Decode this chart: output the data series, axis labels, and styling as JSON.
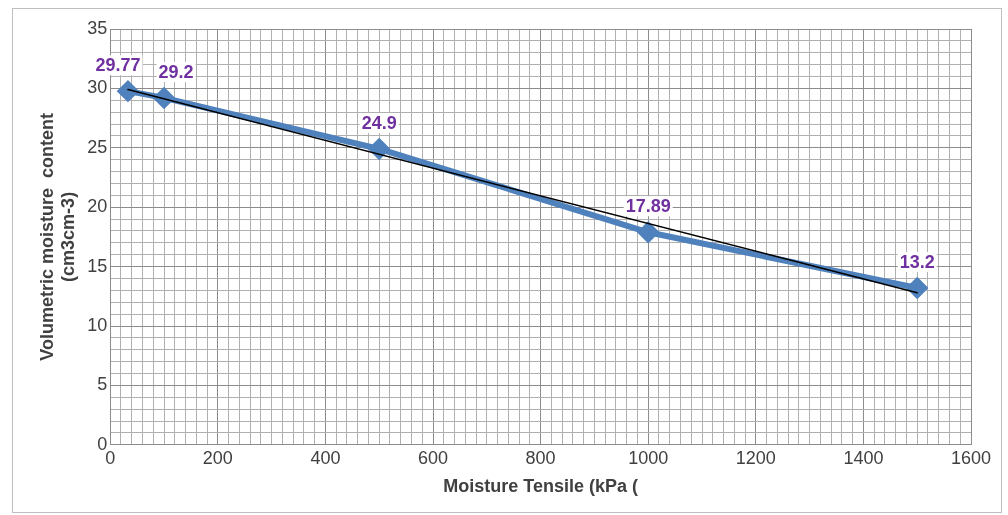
{
  "chart_data": {
    "type": "line",
    "xlabel": "Moisture Tensile (kPa (",
    "ylabel": "Volumetric moisture  content\n(cm3cm-3)",
    "x": [
      33,
      100,
      500,
      1000,
      1500
    ],
    "series": [
      {
        "color": "#4f81bd",
        "values": [
          29.77,
          29.2,
          24.9,
          17.89,
          13.2
        ],
        "value_labels": [
          "29.77",
          "29.2",
          "24.9",
          "17.89",
          "13.2"
        ],
        "marker": "diamond"
      },
      {
        "type": "line",
        "color": "#000000",
        "x": [
          33,
          1500
        ],
        "values": [
          29.9,
          12.8
        ],
        "marker": "none"
      }
    ],
    "grid": true,
    "legend": false,
    "xlim": [
      0,
      1600
    ],
    "ylim": [
      0,
      35
    ],
    "xticks": [
      0,
      {
        "value": 20,
        "label": null
      },
      {
        "value": 40,
        "label": null
      },
      {
        "value": 60,
        "label": null
      },
      {
        "value": 80,
        "label": null
      },
      {
        "value": 100,
        "label": null
      },
      {
        "value": 120,
        "label": null
      },
      {
        "value": 140,
        "label": null
      },
      {
        "value": 160,
        "label": null
      },
      {
        "value": 180,
        "label": null
      },
      200,
      {
        "value": 220,
        "label": null
      },
      {
        "value": 240,
        "label": null
      },
      {
        "value": 260,
        "label": null
      },
      {
        "value": 280,
        "label": null
      },
      {
        "value": 300,
        "label": null
      },
      {
        "value": 320,
        "label": null
      },
      {
        "value": 340,
        "label": null
      },
      {
        "value": 360,
        "label": null
      },
      {
        "value": 380,
        "label": null
      },
      400,
      {
        "value": 420,
        "label": null
      },
      {
        "value": 440,
        "label": null
      },
      {
        "value": 460,
        "label": null
      },
      {
        "value": 480,
        "label": null
      },
      {
        "value": 500,
        "label": null
      },
      {
        "value": 520,
        "label": null
      },
      {
        "value": 540,
        "label": null
      },
      {
        "value": 560,
        "label": null
      },
      {
        "value": 580,
        "label": null
      },
      600,
      {
        "value": 620,
        "label": null
      },
      {
        "value": 640,
        "label": null
      },
      {
        "value": 660,
        "label": null
      },
      {
        "value": 680,
        "label": null
      },
      {
        "value": 700,
        "label": null
      },
      {
        "value": 720,
        "label": null
      },
      {
        "value": 740,
        "label": null
      },
      {
        "value": 760,
        "label": null
      },
      {
        "value": 780,
        "label": null
      },
      800,
      {
        "value": 820,
        "label": null
      },
      {
        "value": 840,
        "label": null
      },
      {
        "value": 860,
        "label": null
      },
      {
        "value": 880,
        "label": null
      },
      {
        "value": 900,
        "label": null
      },
      {
        "value": 920,
        "label": null
      },
      {
        "value": 940,
        "label": null
      },
      {
        "value": 960,
        "label": null
      },
      {
        "value": 980,
        "label": null
      },
      1000,
      {
        "value": 1020,
        "label": null
      },
      {
        "value": 1040,
        "label": null
      },
      {
        "value": 1060,
        "label": null
      },
      {
        "value": 1080,
        "label": null
      },
      {
        "value": 1100,
        "label": null
      },
      {
        "value": 1120,
        "label": null
      },
      {
        "value": 1140,
        "label": null
      },
      {
        "value": 1160,
        "label": null
      },
      {
        "value": 1180,
        "label": null
      },
      1200,
      {
        "value": 1220,
        "label": null
      },
      {
        "value": 1240,
        "label": null
      },
      {
        "value": 1260,
        "label": null
      },
      {
        "value": 1280,
        "label": null
      },
      {
        "value": 1300,
        "label": null
      },
      {
        "value": 1320,
        "label": null
      },
      {
        "value": 1340,
        "label": null
      },
      {
        "value": 1360,
        "label": null
      },
      {
        "value": 1380,
        "label": null
      },
      1400,
      {
        "value": 1420,
        "label": null
      },
      {
        "value": 1440,
        "label": null
      },
      {
        "value": 1460,
        "label": null
      },
      {
        "value": 1480,
        "label": null
      },
      {
        "value": 1500,
        "label": null
      },
      {
        "value": 1520,
        "label": null
      },
      {
        "value": 1540,
        "label": null
      },
      {
        "value": 1560,
        "label": null
      },
      {
        "value": 1580,
        "label": null
      },
      1600
    ],
    "yticks": [
      0,
      {
        "value": 1,
        "label": null
      },
      {
        "value": 2,
        "label": null
      },
      {
        "value": 3,
        "label": null
      },
      {
        "value": 4,
        "label": null
      },
      5,
      {
        "value": 6,
        "label": null
      },
      {
        "value": 7,
        "label": null
      },
      {
        "value": 8,
        "label": null
      },
      {
        "value": 9,
        "label": null
      },
      10,
      {
        "value": 11,
        "label": null
      },
      {
        "value": 12,
        "label": null
      },
      {
        "value": 13,
        "label": null
      },
      {
        "value": 14,
        "label": null
      },
      15,
      {
        "value": 16,
        "label": null
      },
      {
        "value": 17,
        "label": null
      },
      {
        "value": 18,
        "label": null
      },
      {
        "value": 19,
        "label": null
      },
      20,
      {
        "value": 21,
        "label": null
      },
      {
        "value": 22,
        "label": null
      },
      {
        "value": 23,
        "label": null
      },
      {
        "value": 24,
        "label": null
      },
      25,
      {
        "value": 26,
        "label": null
      },
      {
        "value": 27,
        "label": null
      },
      {
        "value": 28,
        "label": null
      },
      {
        "value": 29,
        "label": null
      },
      30,
      {
        "value": 31,
        "label": null
      },
      {
        "value": 32,
        "label": null
      },
      {
        "value": 33,
        "label": null
      },
      {
        "value": 34,
        "label": null
      },
      35
    ]
  }
}
